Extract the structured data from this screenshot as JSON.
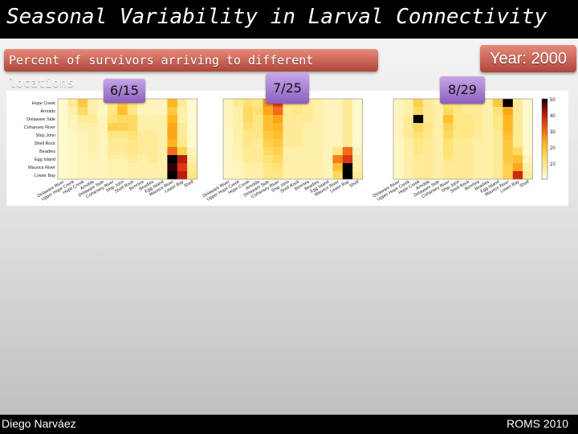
{
  "slide": {
    "title": "Seasonal Variability in Larval Connectivity",
    "subtitle": "Percent of survivors arriving to different locations",
    "year": "Year: 2000",
    "author": "Diego Narváez",
    "event": "ROMS 2010"
  },
  "colors": {
    "low": "#fffde0",
    "mid": "#ffd24a",
    "high": "#e23020",
    "max": "#000000",
    "badge": "#c45c4c",
    "date_badge": "#a47ad2"
  },
  "chart_data": [
    {
      "type": "heatmap",
      "title": "6/15",
      "rows": [
        "Hope Creek",
        "Arnolds",
        "Delaware Side",
        "Cohansey River",
        "Ship John",
        "Shell Rock",
        "Beadies",
        "Egg Island",
        "Maurice River",
        "Lower Bay"
      ],
      "columns": [
        "Delaware River",
        "Upper Hope Creek",
        "Hope Creek",
        "Arnolds",
        "Delaware Side",
        "Cohansey River",
        "Ship John",
        "Shell Rock",
        "Bennies",
        "Beadies",
        "Egg Island",
        "Maurice River",
        "Lower Bay",
        "Shelf"
      ],
      "values": [
        [
          2,
          8,
          18,
          6,
          4,
          10,
          18,
          12,
          6,
          4,
          4,
          22,
          8,
          2
        ],
        [
          2,
          6,
          14,
          6,
          3,
          10,
          20,
          10,
          4,
          4,
          4,
          18,
          6,
          2
        ],
        [
          2,
          4,
          8,
          8,
          4,
          12,
          14,
          14,
          6,
          6,
          6,
          22,
          6,
          2
        ],
        [
          2,
          4,
          6,
          6,
          4,
          16,
          16,
          14,
          6,
          6,
          6,
          24,
          8,
          2
        ],
        [
          2,
          3,
          4,
          6,
          4,
          10,
          10,
          12,
          8,
          8,
          6,
          24,
          8,
          2
        ],
        [
          2,
          3,
          4,
          6,
          4,
          8,
          8,
          10,
          8,
          8,
          6,
          22,
          10,
          2
        ],
        [
          2,
          3,
          4,
          6,
          4,
          8,
          8,
          10,
          8,
          8,
          6,
          30,
          16,
          4
        ],
        [
          2,
          3,
          4,
          5,
          4,
          6,
          6,
          8,
          6,
          8,
          6,
          50,
          40,
          6
        ],
        [
          2,
          3,
          4,
          4,
          4,
          5,
          5,
          6,
          6,
          6,
          6,
          48,
          36,
          8
        ],
        [
          2,
          3,
          4,
          4,
          4,
          5,
          5,
          6,
          6,
          6,
          6,
          50,
          40,
          10
        ]
      ]
    },
    {
      "type": "heatmap",
      "title": "7/25",
      "rows": [
        "Hope Creek",
        "Arnolds",
        "Delaware Side",
        "Cohansey River",
        "Ship John",
        "Shell Rock",
        "Beadies",
        "Egg Island",
        "Maurice River",
        "Lower Bay"
      ],
      "columns": [
        "Delaware River",
        "Upper Hope Creek",
        "Hope Creek",
        "Arnolds",
        "Delaware Side",
        "Cohansey River",
        "Ship John",
        "Shell Rock",
        "Bennies",
        "Beadies",
        "Egg Island",
        "Maurice River",
        "Lower Bay",
        "Shelf"
      ],
      "values": [
        [
          4,
          8,
          12,
          10,
          26,
          34,
          10,
          10,
          8,
          6,
          4,
          4,
          8,
          2
        ],
        [
          4,
          6,
          14,
          12,
          24,
          30,
          8,
          10,
          8,
          6,
          4,
          4,
          8,
          2
        ],
        [
          4,
          6,
          14,
          10,
          20,
          24,
          8,
          8,
          8,
          6,
          4,
          4,
          8,
          2
        ],
        [
          4,
          6,
          12,
          10,
          20,
          22,
          8,
          8,
          6,
          6,
          4,
          4,
          8,
          2
        ],
        [
          3,
          6,
          10,
          10,
          18,
          20,
          8,
          8,
          6,
          6,
          4,
          4,
          8,
          2
        ],
        [
          3,
          5,
          10,
          8,
          16,
          18,
          8,
          8,
          6,
          6,
          4,
          4,
          8,
          2
        ],
        [
          3,
          5,
          8,
          8,
          14,
          16,
          6,
          6,
          6,
          6,
          4,
          10,
          30,
          4
        ],
        [
          3,
          5,
          8,
          8,
          12,
          14,
          6,
          6,
          6,
          6,
          4,
          28,
          36,
          6
        ],
        [
          3,
          4,
          6,
          6,
          10,
          12,
          6,
          6,
          6,
          6,
          4,
          20,
          50,
          6
        ],
        [
          3,
          4,
          6,
          6,
          10,
          10,
          6,
          6,
          6,
          6,
          4,
          14,
          50,
          8
        ]
      ]
    },
    {
      "type": "heatmap",
      "title": "8/29",
      "rows": [
        "Hope Creek",
        "Arnolds",
        "Delaware Side",
        "Cohansey River",
        "Ship John",
        "Shell Rock",
        "Beadies",
        "Egg Island",
        "Maurice River",
        "Lower Bay"
      ],
      "columns": [
        "Delaware River",
        "Upper Hope Creek",
        "Hope Creek",
        "Arnolds",
        "Delaware Side",
        "Cohansey River",
        "Ship John",
        "Shell Rock",
        "Bennies",
        "Beadies",
        "Egg Island",
        "Maurice River",
        "Lower Bay",
        "Shelf"
      ],
      "values": [
        [
          4,
          6,
          16,
          8,
          6,
          12,
          10,
          8,
          8,
          6,
          18,
          50,
          8,
          2
        ],
        [
          4,
          6,
          14,
          8,
          6,
          14,
          10,
          8,
          8,
          6,
          12,
          24,
          8,
          2
        ],
        [
          4,
          8,
          50,
          8,
          6,
          20,
          10,
          10,
          8,
          6,
          10,
          22,
          8,
          2
        ],
        [
          4,
          8,
          14,
          10,
          6,
          16,
          10,
          10,
          8,
          6,
          10,
          22,
          8,
          2
        ],
        [
          4,
          8,
          12,
          10,
          6,
          14,
          10,
          10,
          8,
          6,
          8,
          20,
          8,
          2
        ],
        [
          3,
          6,
          10,
          8,
          6,
          12,
          8,
          8,
          6,
          6,
          8,
          18,
          8,
          2
        ],
        [
          3,
          6,
          10,
          8,
          6,
          12,
          8,
          8,
          6,
          6,
          8,
          18,
          14,
          2
        ],
        [
          3,
          6,
          8,
          8,
          6,
          10,
          8,
          8,
          6,
          6,
          8,
          18,
          20,
          4
        ],
        [
          3,
          6,
          8,
          8,
          6,
          8,
          8,
          8,
          6,
          6,
          8,
          16,
          24,
          6
        ],
        [
          3,
          6,
          8,
          8,
          6,
          8,
          8,
          8,
          6,
          6,
          8,
          16,
          38,
          8
        ]
      ]
    }
  ],
  "colorbar": {
    "min": 0,
    "max": 50,
    "ticks": [
      "50",
      "40",
      "30",
      "20",
      "10"
    ]
  }
}
